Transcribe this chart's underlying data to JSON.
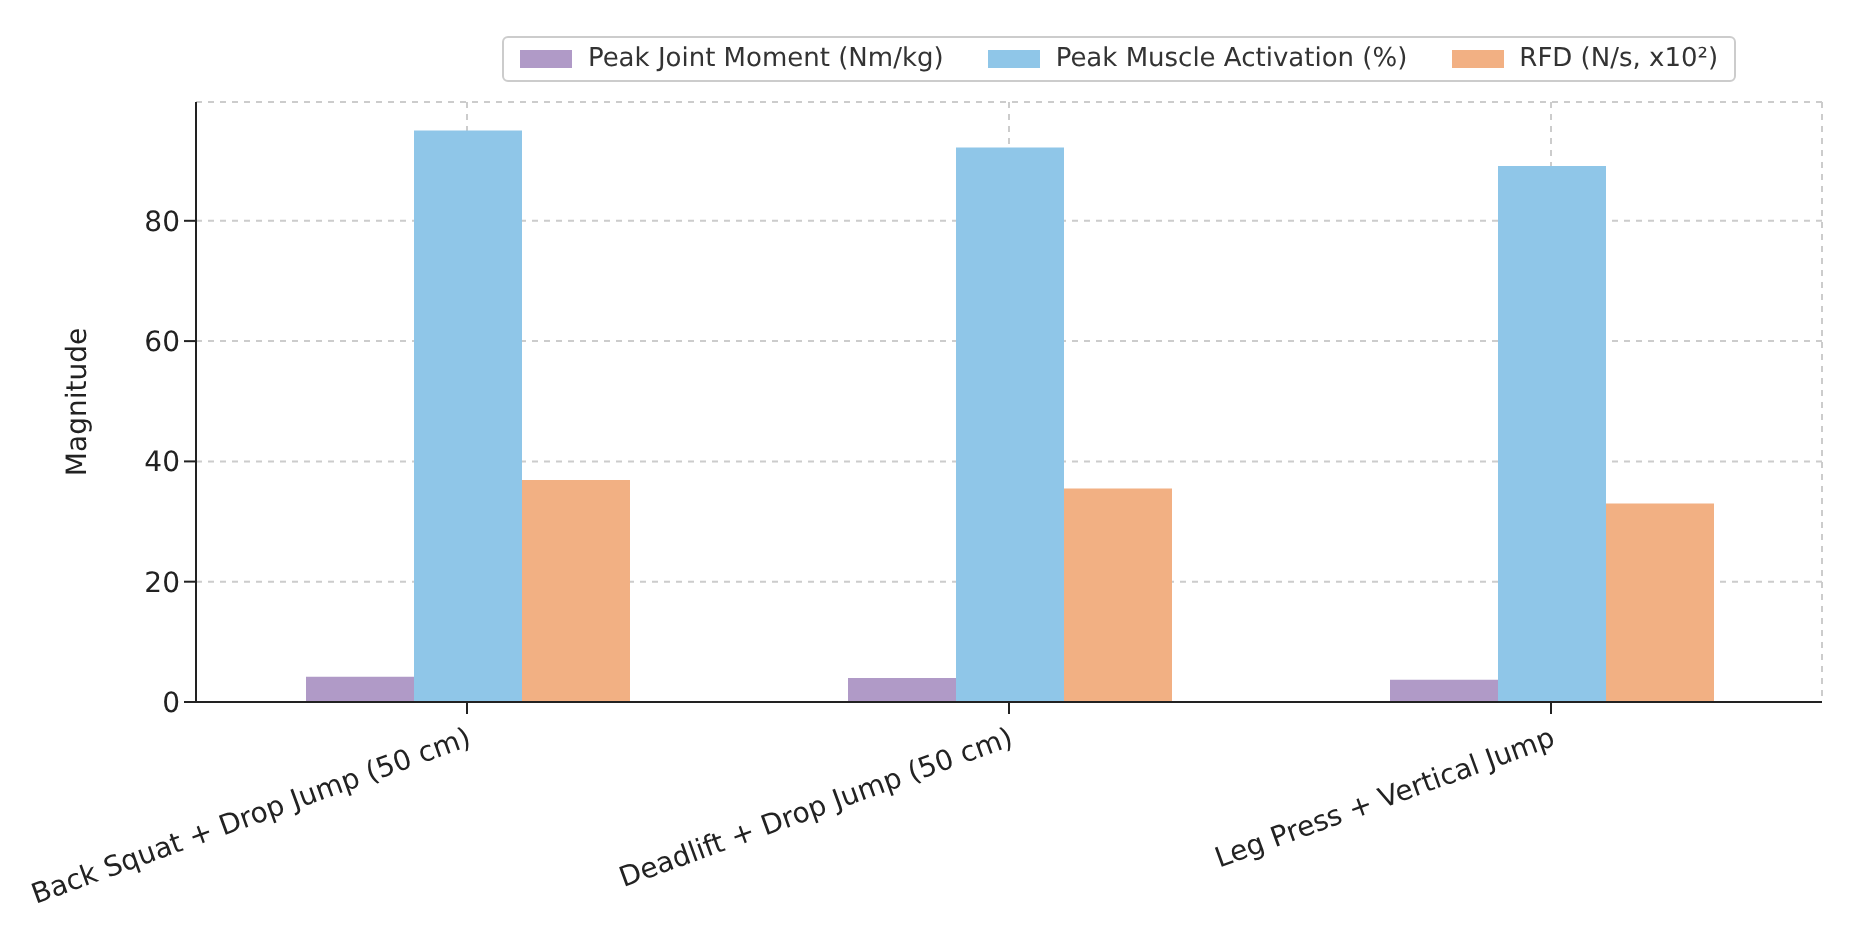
{
  "chart_data": {
    "type": "bar",
    "ylabel": "Magnitude",
    "categories": [
      "Back Squat + Drop Jump (50 cm)",
      "Deadlift + Drop Jump (50 cm)",
      "Leg Press + Vertical Jump"
    ],
    "series": [
      {
        "name": "Peak Joint Moment (Nm/kg)",
        "color": "#b09ac7",
        "values": [
          4.2,
          4.0,
          3.7
        ]
      },
      {
        "name": "Peak Muscle Activation (%)",
        "color": "#8fc6e8",
        "values": [
          95.0,
          92.2,
          89.1
        ]
      },
      {
        "name": "RFD (N/s, x10²)",
        "color": "#f2b083",
        "values": [
          36.9,
          35.5,
          33.0
        ]
      }
    ],
    "ylim": [
      0,
      99.75
    ],
    "yticks": [
      0,
      20,
      40,
      60,
      80
    ],
    "grid": true,
    "legend": "top"
  }
}
